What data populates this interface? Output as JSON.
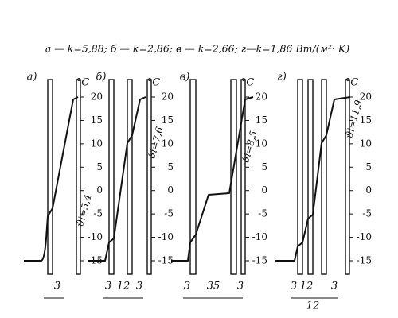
{
  "caption": "а — k=5,88; б — k=2,86; в — k=2,66; г—k=1,86 Вт/(м²· K)",
  "panels": [
    {
      "label": "а)",
      "unit": "°C",
      "ticks": [
        "20",
        "15",
        "10",
        "5",
        "0",
        "-5",
        "-10",
        "-15"
      ],
      "annotation": "ϑi=5,4",
      "dimensions": [
        "3"
      ]
    },
    {
      "label": "б)",
      "unit": "°C",
      "ticks": [
        "20",
        "15",
        "10",
        "5",
        "0",
        "-5",
        "-10",
        "-15"
      ],
      "annotation": "ϑi=7,6",
      "dimensions": [
        "3",
        "12",
        "3"
      ]
    },
    {
      "label": "в)",
      "unit": "°C",
      "ticks": [
        "20",
        "15",
        "10",
        "5",
        "0",
        "-5",
        "-10",
        "-15"
      ],
      "annotation": "ϑi=8,5",
      "dimensions": [
        "3",
        "35",
        "3"
      ]
    },
    {
      "label": "г)",
      "unit": "°C",
      "ticks": [
        "20",
        "15",
        "10",
        "5",
        "0",
        "-5",
        "-10",
        "-15"
      ],
      "annotation": "ϑi=11,9",
      "dimensions": [
        "3",
        "12",
        "12",
        "3"
      ]
    }
  ]
}
